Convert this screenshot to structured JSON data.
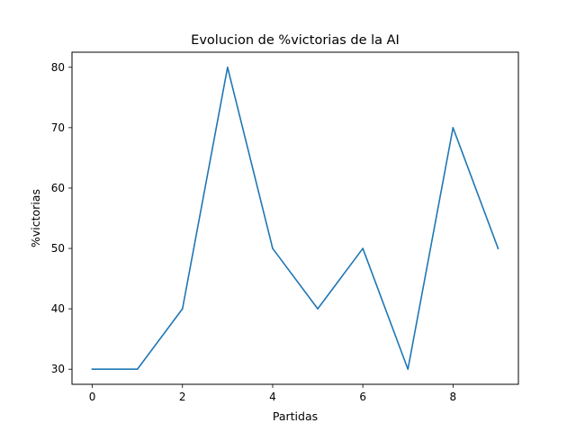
{
  "chart_data": {
    "type": "line",
    "title": "Evolucion de %victorias de la AI",
    "xlabel": "Partidas",
    "ylabel": "%victorias",
    "x": [
      0,
      1,
      2,
      3,
      4,
      5,
      6,
      7,
      8,
      9
    ],
    "series": [
      {
        "values": [
          30,
          30,
          40,
          80,
          50,
          40,
          50,
          30,
          70,
          50
        ],
        "color": "#1f77b4"
      }
    ],
    "xlim": [
      -0.45,
      9.45
    ],
    "ylim": [
      27.5,
      82.5
    ],
    "xticks": [
      0,
      2,
      4,
      6,
      8
    ],
    "yticks": [
      30,
      40,
      50,
      60,
      70,
      80
    ],
    "grid": false,
    "legend": "none"
  }
}
